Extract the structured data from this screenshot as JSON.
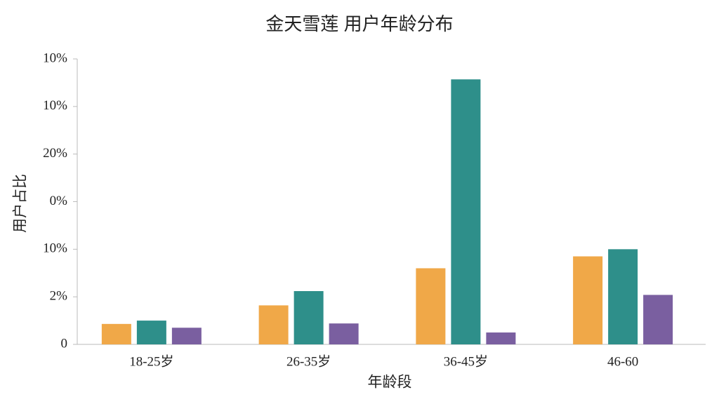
{
  "chart_data": {
    "type": "bar",
    "title": "金天雪莲 用户年龄分布",
    "xlabel": "年龄段",
    "ylabel": "用户占比",
    "categories": [
      "18-25岁",
      "26-35岁",
      "36-45岁",
      "46-60"
    ],
    "series": [
      {
        "color": "#f0a848",
        "values": [
          0.43,
          0.82,
          1.6,
          1.85
        ]
      },
      {
        "color": "#2e8f8a",
        "values": [
          0.5,
          1.12,
          5.57,
          2.0
        ]
      },
      {
        "color": "#7a5fa0",
        "values": [
          0.35,
          0.44,
          0.25,
          1.04
        ]
      }
    ],
    "ylim": [
      0,
      6
    ],
    "yticks": [
      {
        "value": 0,
        "label": "0"
      },
      {
        "value": 1,
        "label": "2%"
      },
      {
        "value": 2,
        "label": "10%"
      },
      {
        "value": 3,
        "label": "0%"
      },
      {
        "value": 4,
        "label": "20%"
      },
      {
        "value": 5,
        "label": "10%"
      },
      {
        "value": 6,
        "label": "10%"
      }
    ],
    "grid": false
  }
}
